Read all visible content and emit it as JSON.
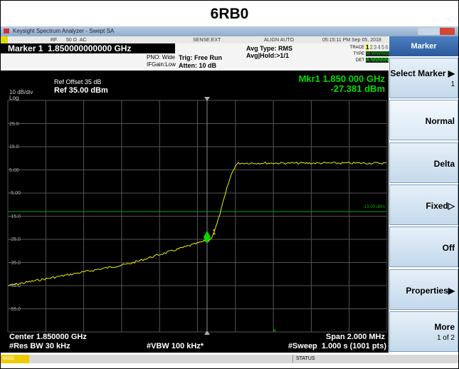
{
  "title": "6RB0",
  "window": {
    "title": "Keysight Spectrum Analyzer - Swept SA"
  },
  "status_row": {
    "rf": "RF",
    "impedance": "50 Ω  AC",
    "sense": "SENSE:EXT",
    "align": "ALIGN AUTO",
    "datetime": "05:15:11 PM Sep 05, 2018"
  },
  "settings": {
    "marker": "Marker 1  1.850000000000 GHz",
    "pno": "PNO: Wide",
    "ifgain": "IFGain:Low",
    "trig": "Trig: Free Run",
    "atten": "Atten: 10 dB",
    "avg_type": "Avg Type: RMS",
    "avg_hold": "Avg|Hold:>1/1",
    "trace_label": "TRACE",
    "trace_numbers": [
      "1",
      "2",
      "3",
      "4",
      "5",
      "6"
    ],
    "type_label": "TYPE",
    "type_values": "M WWWWW",
    "det_label": "DET",
    "det_values": "A NNNNN"
  },
  "plot": {
    "ref_offset": "Ref Offset 35 dB",
    "scale": "10 dB/div",
    "ref_level": "Ref 35.00 dBm",
    "scale_type": "Log",
    "marker_freq": "Mkr1 1.850 000 GHz",
    "marker_level": "-27.381 dBm",
    "y_labels": [
      "25.0",
      "15.0",
      "5.00",
      "-5.00",
      "-15.0",
      "-25.0",
      "-35.0",
      "-45.0",
      "-55.0"
    ],
    "display_line": "-13.00 dBm",
    "marker_label": "1"
  },
  "footer": {
    "center": "Center 1.850000 GHz",
    "rbw": "#Res BW 30 kHz",
    "vbw": "#VBW 100 kHz*",
    "span": "Span 2.000 MHz",
    "sweep": "#Sweep  1.000 s (1001 pts)"
  },
  "status_bar": {
    "msg": "MSG",
    "status": "STATUS"
  },
  "softkeys": {
    "title": "Marker",
    "keys": [
      {
        "label": "Select Marker ▶",
        "value": "1"
      },
      {
        "label": "Normal"
      },
      {
        "label": "Delta"
      },
      {
        "label": "Fixed▷"
      },
      {
        "label": "Off"
      },
      {
        "label": "Properties▶"
      },
      {
        "label": "More",
        "value": "1 of 2"
      }
    ]
  }
}
